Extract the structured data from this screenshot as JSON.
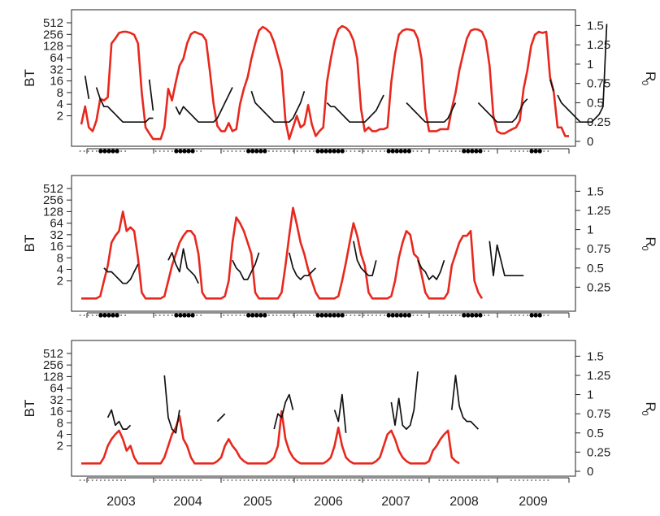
{
  "chart_data": [
    {
      "type": "line",
      "panel": 1,
      "ylabel_left": "BT",
      "ylabel_right": "R",
      "ylabel_right_subscript": "0",
      "y_left_scale": "log2",
      "y_left_ticks": [
        "2",
        "4",
        "8",
        "16",
        "32",
        "64",
        "128",
        "256",
        "512"
      ],
      "y_right_ticks": [
        "0",
        "0.25",
        "0.5",
        "0.75",
        "1",
        "1.25",
        "1.5"
      ],
      "y_right_lim": [
        0,
        1.6
      ],
      "years": [
        "2003",
        "2004",
        "2005",
        "2006",
        "2007",
        "2008",
        "2009"
      ],
      "x_tick_labels": [
        "",
        "",
        "",
        "",
        "",
        "",
        "",
        ""
      ],
      "series": [
        {
          "color": "#e8281e",
          "axis": "left",
          "values": [
            1.2,
            3.5,
            1,
            0.8,
            1.5,
            5.5,
            5,
            6,
            150,
            200,
            280,
            300,
            300,
            280,
            250,
            150,
            8,
            1,
            0.7,
            0.5,
            0.5,
            0.5,
            1,
            10,
            5,
            15,
            40,
            60,
            150,
            260,
            300,
            270,
            250,
            180,
            30,
            4,
            1.1,
            0.8,
            0.8,
            1.3,
            0.8,
            0.9,
            4,
            10,
            20,
            60,
            150,
            320,
            400,
            350,
            280,
            160,
            70,
            30,
            1.5,
            0.5,
            1,
            2,
            1,
            1.2,
            3.8,
            1.2,
            0.6,
            0.8,
            1,
            15,
            60,
            180,
            350,
            420,
            380,
            300,
            180,
            60,
            3,
            0.8,
            1,
            0.8,
            0.8,
            0.9,
            0.9,
            1,
            15,
            80,
            250,
            320,
            350,
            340,
            320,
            200,
            60,
            3,
            0.8,
            0.8,
            0.8,
            0.9,
            0.9,
            0.9,
            3,
            8,
            30,
            80,
            200,
            320,
            350,
            340,
            300,
            180,
            40,
            2,
            0.8,
            0.7,
            0.7,
            0.8,
            0.9,
            1,
            1.5,
            10,
            30,
            130,
            250,
            300,
            280,
            300,
            20,
            8,
            1,
            1,
            0.6,
            0.6
          ]
        },
        {
          "color": "#111111",
          "axis": "right",
          "segments": [
            {
              "x0": 1,
              "values": [
                0.85,
                0.55
              ]
            },
            {
              "x0": 4,
              "values": [
                0.7,
                0.55,
                0.45,
                0.45,
                0.4,
                0.35,
                0.3,
                0.25,
                0.25,
                0.25,
                0.25,
                0.25,
                0.25,
                0.25,
                0.3,
                0.3
              ]
            },
            {
              "x0": 18,
              "values": [
                0.8,
                0.4
              ]
            },
            {
              "x0": 25,
              "values": [
                0.45,
                0.35,
                0.45,
                0.4,
                0.35,
                0.3,
                0.25,
                0.25,
                0.25,
                0.25,
                0.25,
                0.3,
                0.4,
                0.5,
                0.6,
                0.7
              ]
            },
            {
              "x0": 45,
              "values": [
                0.65,
                0.5,
                0.45,
                0.4,
                0.35,
                0.3,
                0.25,
                0.25,
                0.25,
                0.25,
                0.25,
                0.3,
                0.4,
                0.5,
                0.65
              ]
            },
            {
              "x0": 65,
              "values": [
                0.5,
                0.45,
                0.45,
                0.4,
                0.35,
                0.3,
                0.25,
                0.25,
                0.25,
                0.25,
                0.25,
                0.3,
                0.35,
                0.4,
                0.5,
                0.6
              ]
            },
            {
              "x0": 86,
              "values": [
                0.5,
                0.45,
                0.4,
                0.35,
                0.3,
                0.25,
                0.25,
                0.25,
                0.25,
                0.25,
                0.25,
                0.3,
                0.4,
                0.5
              ]
            },
            {
              "x0": 105,
              "values": [
                0.5,
                0.45,
                0.4,
                0.35,
                0.3,
                0.25,
                0.25,
                0.25,
                0.25,
                0.25,
                0.3,
                0.4,
                0.5,
                0.55
              ]
            },
            {
              "x0": 124,
              "values": [
                0.8,
                0.65
              ]
            },
            {
              "x0": 126,
              "values": [
                0.6,
                0.5,
                0.45,
                0.4,
                0.35,
                0.3,
                0.25,
                0.25,
                0.25,
                0.25,
                0.3,
                0.35,
                0.45,
                1.52
              ]
            }
          ]
        }
      ]
    },
    {
      "type": "line",
      "panel": 2,
      "ylabel_left": "BT",
      "ylabel_right": "R",
      "ylabel_right_subscript": "0",
      "y_left_scale": "log2",
      "y_left_ticks": [
        "2",
        "4",
        "8",
        "16",
        "32",
        "64",
        "128",
        "256",
        "512"
      ],
      "y_right_ticks": [
        "0.25",
        "0.5",
        "0.75",
        "1",
        "1.25",
        "1.5"
      ],
      "y_right_lim": [
        0,
        1.6
      ],
      "years": [
        "2003",
        "2004",
        "2005",
        "2006",
        "2007",
        "2008",
        "2009"
      ],
      "x_tick_labels": [
        "",
        "",
        "",
        "",
        "",
        "",
        "",
        ""
      ],
      "series": [
        {
          "color": "#e8281e",
          "axis": "left",
          "values": [
            0.7,
            0.7,
            0.7,
            0.7,
            0.7,
            0.8,
            2,
            5,
            20,
            30,
            40,
            128,
            40,
            50,
            40,
            8,
            1,
            0.7,
            0.7,
            0.7,
            0.7,
            0.7,
            0.8,
            2,
            5,
            10,
            20,
            30,
            40,
            40,
            30,
            10,
            1,
            0.7,
            0.7,
            0.7,
            0.7,
            0.7,
            0.8,
            2,
            20,
            90,
            64,
            40,
            20,
            10,
            1,
            0.7,
            0.7,
            0.7,
            0.7,
            0.7,
            0.7,
            1,
            5,
            30,
            160,
            60,
            20,
            10,
            4,
            2,
            1,
            0.7,
            0.7,
            0.7,
            0.7,
            0.7,
            0.8,
            2,
            6,
            20,
            64,
            30,
            10,
            5,
            1,
            0.7,
            0.7,
            0.7,
            0.7,
            0.7,
            0.8,
            2,
            8,
            20,
            40,
            32,
            10,
            8,
            3,
            1,
            0.7,
            0.7,
            0.7,
            0.7,
            0.7,
            1,
            5,
            10,
            20,
            30,
            30,
            40,
            2,
            1,
            0.7
          ]
        },
        {
          "color": "#111111",
          "axis": "right",
          "segments": [
            {
              "x0": 6,
              "values": [
                0.5,
                0.45,
                0.45,
                0.4,
                0.35,
                0.3,
                0.3,
                0.35,
                0.45,
                0.55
              ]
            },
            {
              "x0": 23,
              "values": [
                0.6,
                0.7,
                0.55,
                0.45,
                0.75,
                0.5,
                0.45,
                0.4,
                0.3
              ]
            },
            {
              "x0": 40,
              "values": [
                0.6,
                0.5,
                0.45,
                0.35,
                0.35,
                0.45,
                0.55,
                0.7
              ]
            },
            {
              "x0": 55,
              "values": [
                0.7,
                0.5,
                0.4,
                0.35,
                0.4,
                0.4,
                0.45,
                0.5
              ]
            },
            {
              "x0": 72,
              "values": [
                0.85,
                0.6,
                0.5,
                0.45,
                0.4,
                0.4,
                0.6
              ]
            },
            {
              "x0": 89,
              "values": [
                0.6,
                0.5,
                0.45,
                0.35,
                0.4,
                0.35,
                0.45,
                0.6
              ]
            },
            {
              "x0": 108,
              "values": [
                0.85,
                0.4,
                0.8,
                0.6,
                0.4,
                0.4,
                0.4,
                0.4,
                0.4,
                0.4
              ]
            }
          ]
        }
      ]
    },
    {
      "type": "line",
      "panel": 3,
      "ylabel_left": "BT",
      "ylabel_right": "R",
      "ylabel_right_subscript": "0",
      "y_left_scale": "log2",
      "y_left_ticks": [
        "2",
        "4",
        "8",
        "16",
        "32",
        "64",
        "128",
        "256",
        "512"
      ],
      "y_right_ticks": [
        "0",
        "0.25",
        "0.5",
        "0.75",
        "1",
        "1.25",
        "1.5"
      ],
      "y_right_lim": [
        0,
        1.6
      ],
      "x_tick_labels": [
        "",
        "",
        "",
        "",
        "",
        "",
        "",
        ""
      ],
      "years": [
        "2003",
        "2004",
        "2005",
        "2006",
        "2007",
        "2008",
        "2009"
      ],
      "series": [
        {
          "color": "#e8281e",
          "axis": "left",
          "values": [
            0.7,
            0.7,
            0.7,
            0.7,
            0.7,
            0.7,
            1,
            2,
            3,
            4,
            5,
            3,
            1.5,
            2,
            1,
            0.7,
            0.7,
            0.7,
            0.7,
            0.7,
            0.7,
            0.7,
            1,
            2,
            4,
            6,
            12,
            3,
            2,
            1,
            0.7,
            0.7,
            0.7,
            0.7,
            0.7,
            0.7,
            0.8,
            1,
            2,
            3,
            2,
            1.5,
            1,
            0.8,
            0.7,
            0.7,
            0.7,
            0.7,
            0.7,
            0.7,
            0.8,
            1,
            2,
            16,
            3,
            1.5,
            1,
            0.8,
            0.7,
            0.7,
            0.7,
            0.7,
            0.7,
            0.7,
            0.7,
            0.8,
            1,
            2,
            6,
            2,
            1,
            0.8,
            0.7,
            0.7,
            0.7,
            0.7,
            0.7,
            0.7,
            0.8,
            1,
            2,
            4,
            5,
            3,
            1.5,
            1,
            0.8,
            0.7,
            0.7,
            0.7,
            0.7,
            0.7,
            0.8,
            1.5,
            2,
            3,
            4,
            5,
            1,
            0.8,
            0.7
          ]
        },
        {
          "color": "#111111",
          "axis": "right",
          "segments": [
            {
              "x0": 7,
              "values": [
                0.7,
                0.8,
                0.6,
                0.65,
                0.55,
                0.55,
                0.6
              ]
            },
            {
              "x0": 22,
              "values": [
                1.25,
                0.7,
                0.55,
                0.5,
                0.8
              ]
            },
            {
              "x0": 36,
              "values": [
                0.65,
                0.7,
                0.75
              ]
            },
            {
              "x0": 51,
              "values": [
                0.55,
                0.75,
                0.7,
                0.9,
                1.0,
                0.8
              ]
            },
            {
              "x0": 67,
              "values": [
                0.8,
                0.65,
                1.0,
                0.5
              ]
            },
            {
              "x0": 82,
              "values": [
                0.9,
                0.6,
                0.95,
                0.6,
                0.55,
                0.6,
                0.8,
                1.3
              ]
            },
            {
              "x0": 98,
              "values": [
                0.8,
                1.25,
                0.85,
                0.7,
                0.65,
                0.65,
                0.6,
                0.55
              ]
            }
          ]
        }
      ]
    }
  ]
}
